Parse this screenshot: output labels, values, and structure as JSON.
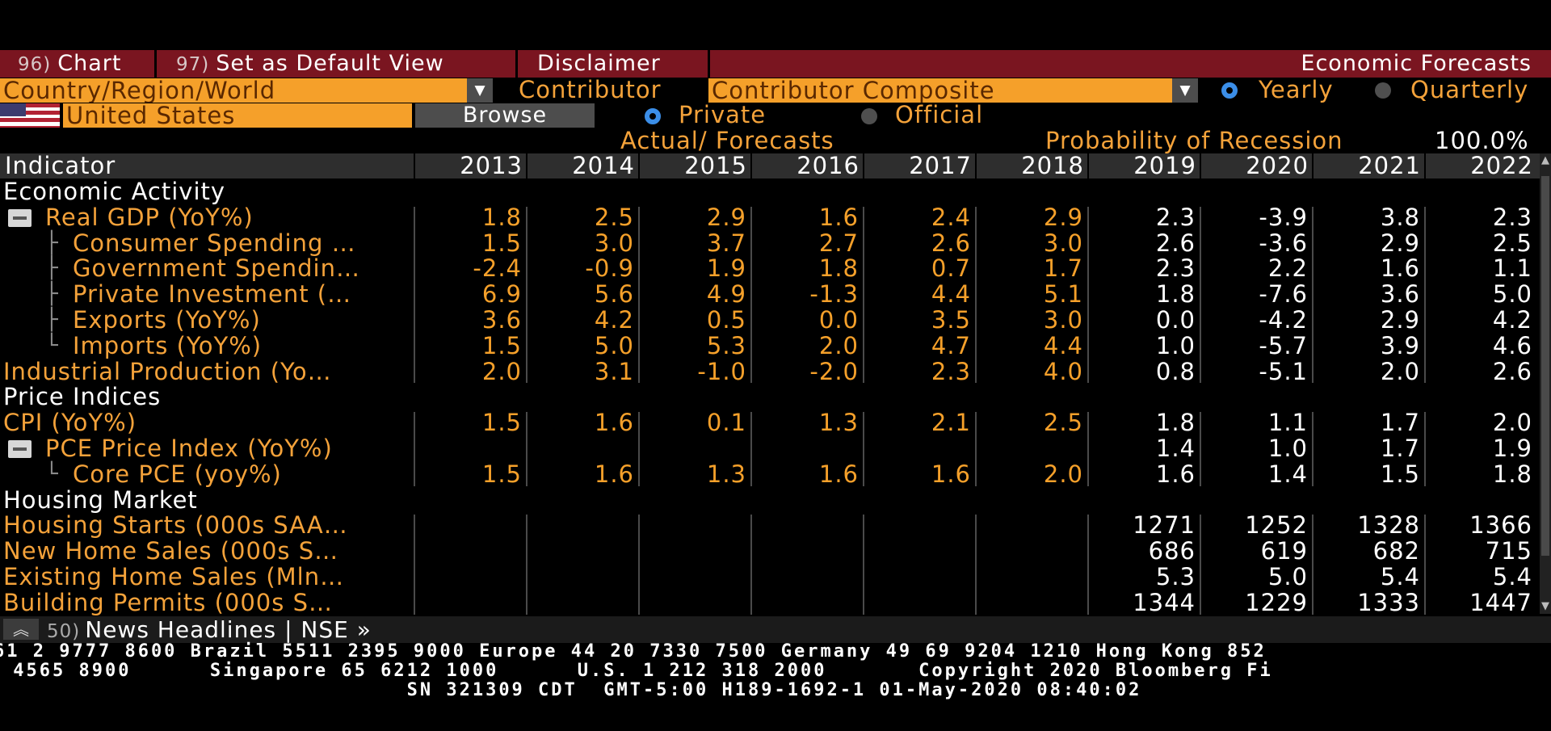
{
  "toolbar": {
    "chart_num": "96)",
    "chart_label": "Chart",
    "default_num": "97)",
    "default_label": "Set as Default View",
    "disclaimer_label": "Disclaimer",
    "title": "Economic Forecasts"
  },
  "controls": {
    "region_value": "Country/Region/World",
    "contributor_label": "Contributor",
    "contributor_value": "Contributor Composite",
    "yearly_label": "Yearly",
    "quarterly_label": "Quarterly",
    "country_value": "United States",
    "browse_label": "Browse",
    "private_label": "Private",
    "official_label": "Official",
    "dropdown_glyph": "▼"
  },
  "subheader": {
    "actual_forecasts": "Actual/ Forecasts",
    "prob_label": "Probability of Recession",
    "prob_value": "100.0%"
  },
  "table": {
    "indicator_header": "Indicator",
    "years": [
      "2013",
      "2014",
      "2015",
      "2016",
      "2017",
      "2018",
      "2019",
      "2020",
      "2021",
      "2022"
    ],
    "rows": [
      {
        "name": "Economic Activity",
        "kind": "section",
        "values": []
      },
      {
        "name": "Real GDP (YoY%)",
        "kind": "parent",
        "values": [
          "1.8",
          "2.5",
          "2.9",
          "1.6",
          "2.4",
          "2.9",
          "2.3",
          "-3.9",
          "3.8",
          "2.3"
        ]
      },
      {
        "name": "Consumer Spending …",
        "kind": "child",
        "values": [
          "1.5",
          "3.0",
          "3.7",
          "2.7",
          "2.6",
          "3.0",
          "2.6",
          "-3.6",
          "2.9",
          "2.5"
        ]
      },
      {
        "name": "Government Spendin…",
        "kind": "child",
        "values": [
          "-2.4",
          "-0.9",
          "1.9",
          "1.8",
          "0.7",
          "1.7",
          "2.3",
          "2.2",
          "1.6",
          "1.1"
        ]
      },
      {
        "name": "Private Investment (…",
        "kind": "child",
        "values": [
          "6.9",
          "5.6",
          "4.9",
          "-1.3",
          "4.4",
          "5.1",
          "1.8",
          "-7.6",
          "3.6",
          "5.0"
        ]
      },
      {
        "name": "Exports (YoY%)",
        "kind": "child",
        "values": [
          "3.6",
          "4.2",
          "0.5",
          "0.0",
          "3.5",
          "3.0",
          "0.0",
          "-4.2",
          "2.9",
          "4.2"
        ]
      },
      {
        "name": "Imports (YoY%)",
        "kind": "child-last",
        "values": [
          "1.5",
          "5.0",
          "5.3",
          "2.0",
          "4.7",
          "4.4",
          "1.0",
          "-5.7",
          "3.9",
          "4.6"
        ]
      },
      {
        "name": "Industrial Production (Yo…",
        "kind": "item",
        "values": [
          "2.0",
          "3.1",
          "-1.0",
          "-2.0",
          "2.3",
          "4.0",
          "0.8",
          "-5.1",
          "2.0",
          "2.6"
        ]
      },
      {
        "name": "Price Indices",
        "kind": "section",
        "values": []
      },
      {
        "name": "CPI (YoY%)",
        "kind": "item",
        "values": [
          "1.5",
          "1.6",
          "0.1",
          "1.3",
          "2.1",
          "2.5",
          "1.8",
          "1.1",
          "1.7",
          "2.0"
        ]
      },
      {
        "name": "PCE Price Index (YoY%)",
        "kind": "parent",
        "values": [
          "",
          "",
          "",
          "",
          "",
          "",
          "1.4",
          "1.0",
          "1.7",
          "1.9"
        ]
      },
      {
        "name": "Core PCE (yoy%)",
        "kind": "child-last",
        "values": [
          "1.5",
          "1.6",
          "1.3",
          "1.6",
          "1.6",
          "2.0",
          "1.6",
          "1.4",
          "1.5",
          "1.8"
        ]
      },
      {
        "name": "Housing Market",
        "kind": "section",
        "values": []
      },
      {
        "name": "Housing Starts (000s SAA…",
        "kind": "item",
        "values": [
          "",
          "",
          "",
          "",
          "",
          "",
          "1271",
          "1252",
          "1328",
          "1366"
        ]
      },
      {
        "name": "New Home Sales (000s S…",
        "kind": "item",
        "values": [
          "",
          "",
          "",
          "",
          "",
          "",
          "686",
          "619",
          "682",
          "715"
        ]
      },
      {
        "name": "Existing Home Sales (Mln…",
        "kind": "item",
        "values": [
          "",
          "",
          "",
          "",
          "",
          "",
          "5.3",
          "5.0",
          "5.4",
          "5.4"
        ]
      },
      {
        "name": "Building Permits (000s S…",
        "kind": "item",
        "values": [
          "",
          "",
          "",
          "",
          "",
          "",
          "1344",
          "1229",
          "1333",
          "1447"
        ]
      }
    ]
  },
  "news": {
    "num": "50)",
    "label": "News Headlines",
    "separator": "|",
    "nse": "NSE »",
    "icon": "double-chevron-up-icon"
  },
  "footer": {
    "line1": "61 2 9777 8600 Brazil 5511 2395 9000 Europe 44 20 7330 7500 Germany 49 69 9204 1210 Hong Kong 852",
    "line2": " 4565 8900      Singapore 65 6212 1000      U.S. 1 212 318 2000       Copyright 2020 Bloomberg Fi",
    "line3": "                               SN 321309 CDT  GMT-5:00 H189-1692-1 01-May-2020 08:40:02"
  },
  "colors": {
    "accent_amber": "#f5a02a",
    "toolbar_red": "#7a1520",
    "radio_blue": "#3b8ee8",
    "forecast_white": "#ffffff"
  }
}
